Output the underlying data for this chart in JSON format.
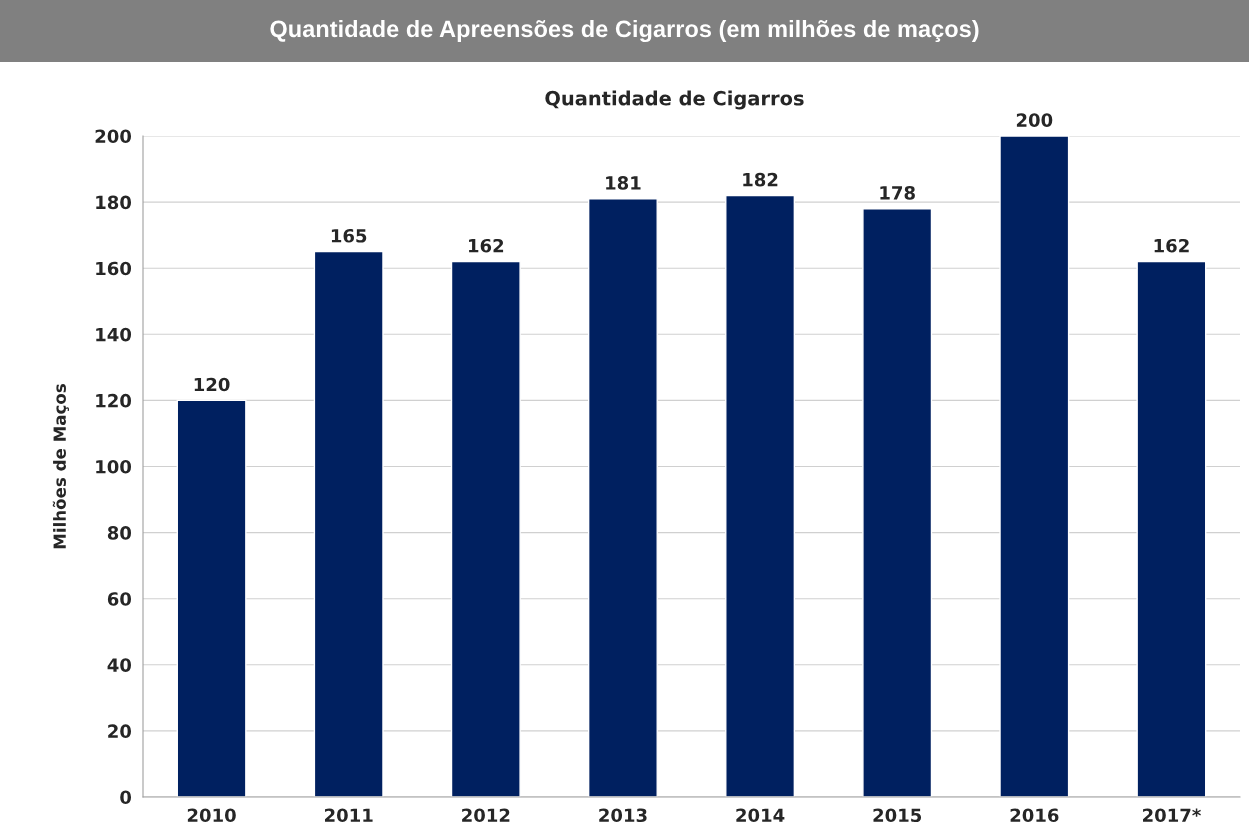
{
  "chart_data": {
    "type": "bar",
    "title": "Quantidade de Apreensões de Cigarros (em milhões de maços)",
    "subtitle": "Quantidade de Cigarros",
    "ylabel": "Milhões de Maços",
    "categories": [
      "2010",
      "2011",
      "2012",
      "2013",
      "2014",
      "2015",
      "2016",
      "2017*"
    ],
    "values": [
      120,
      165,
      162,
      181,
      182,
      178,
      200,
      162
    ],
    "color": "#002060",
    "ylim": [
      0,
      200
    ],
    "yticks": [
      0,
      20,
      40,
      60,
      80,
      100,
      120,
      140,
      160,
      180,
      200
    ],
    "grid": "y",
    "data_labels": true,
    "legend": false
  }
}
